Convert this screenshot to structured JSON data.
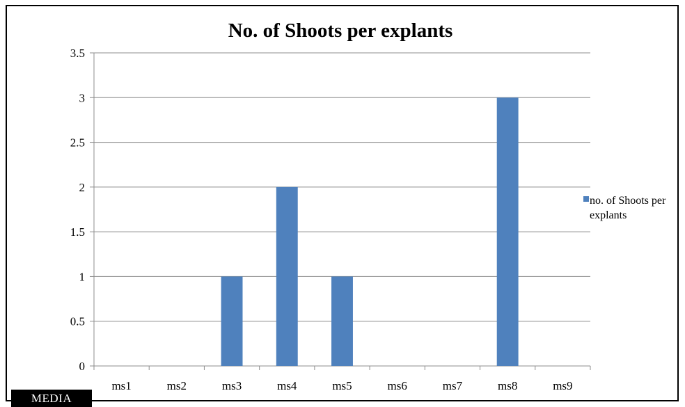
{
  "chart_data": {
    "type": "bar",
    "title": "No. of Shoots per explants",
    "categories": [
      "ms1",
      "ms2",
      "ms3",
      "ms4",
      "ms5",
      "ms6",
      "ms7",
      "ms8",
      "ms9"
    ],
    "series": [
      {
        "name": "no. of Shoots per explants",
        "values": [
          0,
          0,
          1,
          2,
          1,
          0,
          0,
          3,
          0
        ],
        "color": "#4f81bd"
      }
    ],
    "yticks": [
      "0",
      "0.5",
      "1",
      "1.5",
      "2",
      "2.5",
      "3",
      "3.5"
    ],
    "ylim": [
      0,
      3.5
    ],
    "grid": true,
    "legend_position": "right"
  },
  "xaxis_badge": "MEDIA"
}
